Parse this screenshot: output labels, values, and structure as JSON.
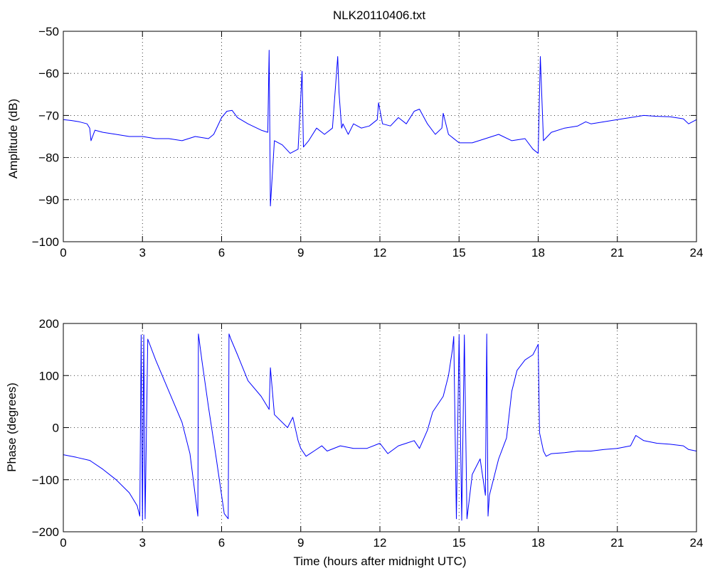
{
  "chart_data": [
    {
      "type": "line",
      "title": "NLK20110406.txt",
      "xlabel": "",
      "ylabel": "Amplitude (dB)",
      "xlim": [
        0,
        24
      ],
      "ylim": [
        -100,
        -50
      ],
      "xticks": [
        "0",
        "3",
        "6",
        "9",
        "12",
        "15",
        "18",
        "21",
        "24"
      ],
      "yticks": [
        "−100",
        "−90",
        "−80",
        "−70",
        "−60",
        "−50"
      ],
      "grid": true,
      "color": "#0000ff",
      "series": [
        {
          "x": [
            0,
            0.3,
            0.6,
            0.9,
            1.0,
            1.05,
            1.2,
            1.5,
            2.0,
            2.5,
            3.0,
            3.5,
            4.0,
            4.5,
            5.0,
            5.5,
            5.7,
            6.0,
            6.2,
            6.4,
            6.6,
            7.0,
            7.5,
            7.75,
            7.8,
            7.85,
            8.0,
            8.3,
            8.6,
            8.9,
            9.05,
            9.1,
            9.3,
            9.6,
            9.9,
            10.2,
            10.4,
            10.45,
            10.55,
            10.6,
            10.8,
            11.0,
            11.3,
            11.6,
            11.9,
            11.95,
            12.1,
            12.4,
            12.7,
            13.0,
            13.3,
            13.5,
            13.8,
            14.1,
            14.35,
            14.4,
            14.6,
            15.0,
            15.5,
            16.0,
            16.5,
            17.0,
            17.5,
            17.8,
            18.0,
            18.08,
            18.2,
            18.5,
            19.0,
            19.5,
            19.8,
            20.0,
            20.5,
            21.0,
            21.5,
            22.0,
            22.5,
            23.0,
            23.5,
            23.7,
            24.0
          ],
          "y": [
            -71,
            -71.2,
            -71.5,
            -72,
            -73,
            -76,
            -73.5,
            -74,
            -74.5,
            -75,
            -75,
            -75.5,
            -75.5,
            -76,
            -75,
            -75.5,
            -74.5,
            -70.5,
            -69,
            -68.8,
            -70.5,
            -72,
            -73.5,
            -74,
            -54.5,
            -91.5,
            -76,
            -77,
            -79,
            -78,
            -59.5,
            -77.5,
            -76,
            -73,
            -74.5,
            -73,
            -56,
            -64.5,
            -73,
            -72,
            -74.5,
            -72,
            -73,
            -72.5,
            -71,
            -67,
            -72,
            -72.5,
            -70.5,
            -72,
            -69,
            -68.5,
            -72,
            -74.5,
            -73,
            -69.5,
            -74.5,
            -76.5,
            -76.5,
            -75.5,
            -74.5,
            -76,
            -75.5,
            -78,
            -79,
            -56,
            -76,
            -74,
            -73,
            -72.5,
            -71.5,
            -72,
            -71.5,
            -71,
            -70.5,
            -70,
            -70.2,
            -70.3,
            -70.8,
            -72,
            -71
          ]
        }
      ]
    },
    {
      "type": "line",
      "title": "",
      "xlabel": "Time (hours after midnight UTC)",
      "ylabel": "Phase (degrees)",
      "xlim": [
        0,
        24
      ],
      "ylim": [
        -200,
        200
      ],
      "xticks": [
        "0",
        "3",
        "6",
        "9",
        "12",
        "15",
        "18",
        "21",
        "24"
      ],
      "yticks": [
        "−200",
        "−100",
        "0",
        "100",
        "200"
      ],
      "grid": true,
      "color": "#0000ff",
      "series": [
        {
          "x": [
            0,
            0.5,
            1.0,
            1.5,
            2.0,
            2.5,
            2.8,
            2.9,
            2.95,
            3.0,
            3.05,
            3.1,
            3.2,
            3.5,
            4.0,
            4.5,
            4.8,
            5.1,
            5.12,
            5.25,
            5.5,
            5.8,
            6.1,
            6.25,
            6.28,
            6.35,
            6.6,
            7.0,
            7.5,
            7.8,
            7.85,
            8.0,
            8.5,
            8.7,
            8.9,
            9.0,
            9.2,
            9.5,
            9.8,
            10.0,
            10.5,
            11.0,
            11.5,
            12.0,
            12.3,
            12.7,
            13.0,
            13.3,
            13.5,
            13.8,
            14.0,
            14.4,
            14.6,
            14.75,
            14.8,
            14.9,
            15.0,
            15.1,
            15.2,
            15.3,
            15.5,
            15.8,
            16.0,
            16.05,
            16.1,
            16.15,
            16.3,
            16.5,
            16.8,
            17.0,
            17.2,
            17.5,
            17.8,
            18.0,
            18.05,
            18.2,
            18.3,
            18.5,
            19.0,
            19.5,
            20.0,
            20.5,
            21.0,
            21.5,
            21.7,
            22.0,
            22.5,
            23.0,
            23.5,
            23.7,
            24.0
          ],
          "y": [
            -52,
            -57,
            -63,
            -80,
            -100,
            -125,
            -150,
            -170,
            178,
            -178,
            178,
            -175,
            170,
            130,
            70,
            10,
            -50,
            -170,
            180,
            130,
            40,
            -60,
            -165,
            -175,
            180,
            170,
            140,
            90,
            60,
            35,
            115,
            25,
            0,
            20,
            -25,
            -40,
            -55,
            -45,
            -35,
            -45,
            -35,
            -40,
            -40,
            -30,
            -50,
            -35,
            -30,
            -25,
            -40,
            -5,
            30,
            60,
            100,
            150,
            175,
            -175,
            178,
            -178,
            178,
            -175,
            -90,
            -60,
            -130,
            180,
            -170,
            -130,
            -100,
            -60,
            -20,
            70,
            110,
            130,
            140,
            160,
            -10,
            -45,
            -55,
            -50,
            -48,
            -45,
            -45,
            -42,
            -40,
            -35,
            -15,
            -25,
            -30,
            -32,
            -35,
            -42,
            -45
          ]
        }
      ]
    }
  ]
}
